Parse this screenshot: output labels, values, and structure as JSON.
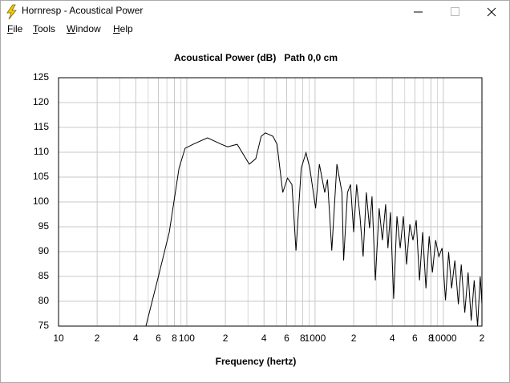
{
  "window": {
    "title": "Hornresp - Acoustical Power",
    "menu": [
      "File",
      "Tools",
      "Window",
      "Help"
    ]
  },
  "chart_data": {
    "type": "line",
    "title": "Acoustical Power (dB)   Path 0,0 cm",
    "xlabel": "Frequency (hertz)",
    "xscale": "log",
    "grid": true,
    "xlim": [
      10,
      20000
    ],
    "ylim": [
      75,
      125
    ],
    "xticks": [
      10,
      {
        "value": 20,
        "label": "2"
      },
      {
        "value": 40,
        "label": "4"
      },
      {
        "value": 60,
        "label": "6"
      },
      {
        "value": 80,
        "label": "8"
      },
      100,
      {
        "value": 200,
        "label": "2"
      },
      {
        "value": 400,
        "label": "4"
      },
      {
        "value": 600,
        "label": "6"
      },
      {
        "value": 800,
        "label": "8"
      },
      1000,
      {
        "value": 2000,
        "label": "2"
      },
      {
        "value": 4000,
        "label": "4"
      },
      {
        "value": 6000,
        "label": "6"
      },
      {
        "value": 8000,
        "label": "8"
      },
      10000,
      {
        "value": 20000,
        "label": "2"
      }
    ],
    "xminorticks": [
      30,
      50,
      70,
      90,
      300,
      500,
      700,
      900,
      3000,
      5000,
      7000,
      9000
    ],
    "yticks": [
      75,
      80,
      85,
      90,
      95,
      100,
      105,
      110,
      115,
      120,
      125
    ],
    "x": [
      48,
      59,
      73,
      87,
      97,
      112,
      145,
      186,
      208,
      247,
      307,
      345,
      380,
      410,
      470,
      505,
      560,
      610,
      660,
      710,
      780,
      850,
      910,
      1010,
      1080,
      1190,
      1250,
      1350,
      1480,
      1620,
      1670,
      1790,
      1890,
      2000,
      2110,
      2240,
      2370,
      2510,
      2660,
      2780,
      2950,
      3160,
      3350,
      3550,
      3700,
      3870,
      4100,
      4350,
      4610,
      4880,
      5170,
      5480,
      5800,
      6150,
      6520,
      6900,
      7320,
      7760,
      8220,
      8710,
      9230,
      9780,
      10400,
      11000,
      11600,
      12300,
      13100,
      13800,
      14700,
      15600,
      16500,
      17400,
      18500,
      19400,
      20000
    ],
    "series": [
      {
        "color": "#000000",
        "values": [
          75,
          84.2,
          93.9,
          106.8,
          110.8,
          111.6,
          112.9,
          111.6,
          111.1,
          111.6,
          107.6,
          108.7,
          113.2,
          113.9,
          113.2,
          111.6,
          101.9,
          104.8,
          103.5,
          90.2,
          106.8,
          109.9,
          106.8,
          98.7,
          107.6,
          101.9,
          104.5,
          90.2,
          107.6,
          101.9,
          88.2,
          101.9,
          103.5,
          93.9,
          103.5,
          97.1,
          89.0,
          101.9,
          94.7,
          101.1,
          84.2,
          98.7,
          92.3,
          99.5,
          90.7,
          97.9,
          80.5,
          97.1,
          90.7,
          97.1,
          87.4,
          95.5,
          92.3,
          96.3,
          84.2,
          93.9,
          82.6,
          93.1,
          85.8,
          92.3,
          89.0,
          90.7,
          80.2,
          89.9,
          82.6,
          88.2,
          79.4,
          87.4,
          77.7,
          85.8,
          76.1,
          84.2,
          75,
          85.0,
          79.4
        ]
      }
    ]
  }
}
